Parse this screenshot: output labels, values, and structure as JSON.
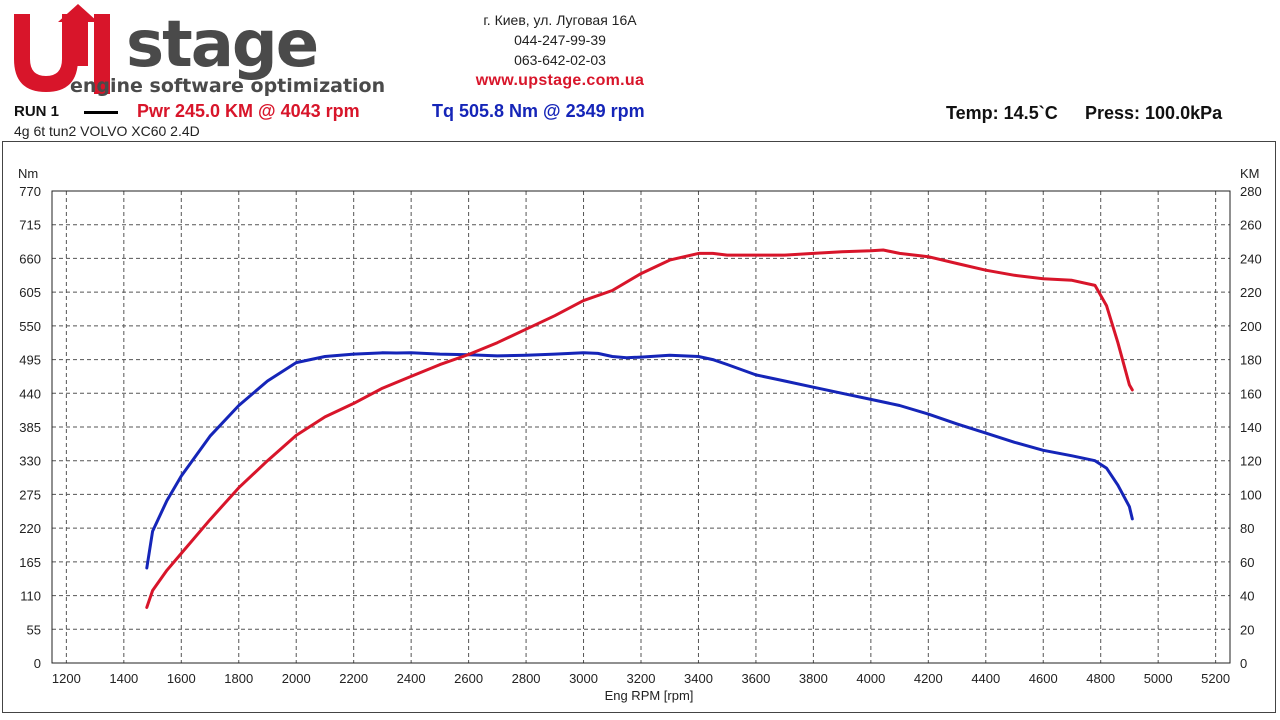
{
  "brand": {
    "logo_text": "Upstage",
    "tagline": "engine software optimization"
  },
  "contact": {
    "address": "г. Киев, ул. Луговая 16А",
    "phone1": "044-247-99-39",
    "phone2": "063-642-02-03",
    "website": "www.upstage.com.ua"
  },
  "header": {
    "run_label": "RUN 1",
    "power_summary": "Pwr  245.0 KM @ 4043 rpm",
    "torque_summary": "Tq 505.8 Nm @ 2349 rpm",
    "temperature": "Temp: 14.5`C",
    "pressure": "Press: 100.0kPa",
    "subtitle": "4g 6t tun2 VOLVO XC60 2.4D"
  },
  "colors": {
    "power": "#d8152a",
    "torque": "#1525b8",
    "grid": "#555555",
    "logo_red": "#d8152a",
    "logo_gray": "#4a4a4a"
  },
  "chart_data": {
    "type": "line",
    "title": "",
    "xlabel": "Eng RPM [rpm]",
    "ylabel_left": "Nm",
    "ylabel_right": "KM",
    "xlim": [
      1150,
      5250
    ],
    "ylim_left": [
      0,
      770
    ],
    "ylim_right": [
      0,
      280
    ],
    "x_ticks": [
      "1200",
      "1400",
      "1600",
      "1800",
      "2000",
      "2200",
      "2400",
      "2600",
      "2800",
      "3000",
      "3200",
      "3400",
      "3600",
      "3800",
      "4000",
      "4200",
      "4400",
      "4600",
      "4800",
      "5000",
      "5200"
    ],
    "y_left_ticks": [
      "0",
      "55",
      "110",
      "165",
      "220",
      "275",
      "330",
      "385",
      "440",
      "495",
      "550",
      "605",
      "660",
      "715",
      "770"
    ],
    "y_right_ticks": [
      "0",
      "20",
      "40",
      "60",
      "80",
      "100",
      "120",
      "140",
      "160",
      "180",
      "200",
      "220",
      "240",
      "260",
      "280"
    ],
    "grid": true,
    "series": [
      {
        "name": "Tq",
        "axis": "left",
        "color": "#1525b8",
        "x": [
          1480,
          1500,
          1550,
          1600,
          1700,
          1800,
          1900,
          2000,
          2100,
          2200,
          2300,
          2349,
          2400,
          2500,
          2600,
          2700,
          2800,
          2900,
          3000,
          3050,
          3100,
          3150,
          3200,
          3300,
          3400,
          3450,
          3500,
          3600,
          3700,
          3800,
          3900,
          4000,
          4100,
          4200,
          4300,
          4400,
          4500,
          4600,
          4700,
          4780,
          4820,
          4860,
          4900,
          4910
        ],
        "y": [
          155,
          215,
          265,
          305,
          370,
          420,
          460,
          490,
          500,
          504,
          506,
          505.8,
          506,
          504,
          503,
          501,
          502,
          504,
          506,
          505,
          500,
          498,
          499,
          502,
          500,
          495,
          487,
          470,
          460,
          450,
          440,
          430,
          420,
          406,
          390,
          375,
          360,
          347,
          338,
          330,
          318,
          290,
          255,
          235
        ]
      },
      {
        "name": "Pwr",
        "axis": "right",
        "color": "#d8152a",
        "x": [
          1480,
          1500,
          1550,
          1600,
          1700,
          1800,
          1900,
          2000,
          2100,
          2200,
          2300,
          2400,
          2500,
          2600,
          2700,
          2800,
          2900,
          3000,
          3100,
          3200,
          3300,
          3400,
          3450,
          3500,
          3600,
          3700,
          3800,
          3900,
          4000,
          4043,
          4100,
          4200,
          4300,
          4400,
          4500,
          4600,
          4700,
          4780,
          4820,
          4860,
          4900,
          4910
        ],
        "y": [
          33,
          43,
          55,
          65,
          85,
          104,
          120,
          135,
          146,
          154,
          163,
          170,
          177,
          183,
          190,
          198,
          206,
          215,
          221,
          231,
          239,
          243,
          243,
          242,
          242,
          242,
          243,
          244,
          244.5,
          245,
          243,
          241,
          237,
          233,
          230,
          228,
          227,
          224,
          212,
          190,
          165,
          162
        ]
      }
    ]
  }
}
